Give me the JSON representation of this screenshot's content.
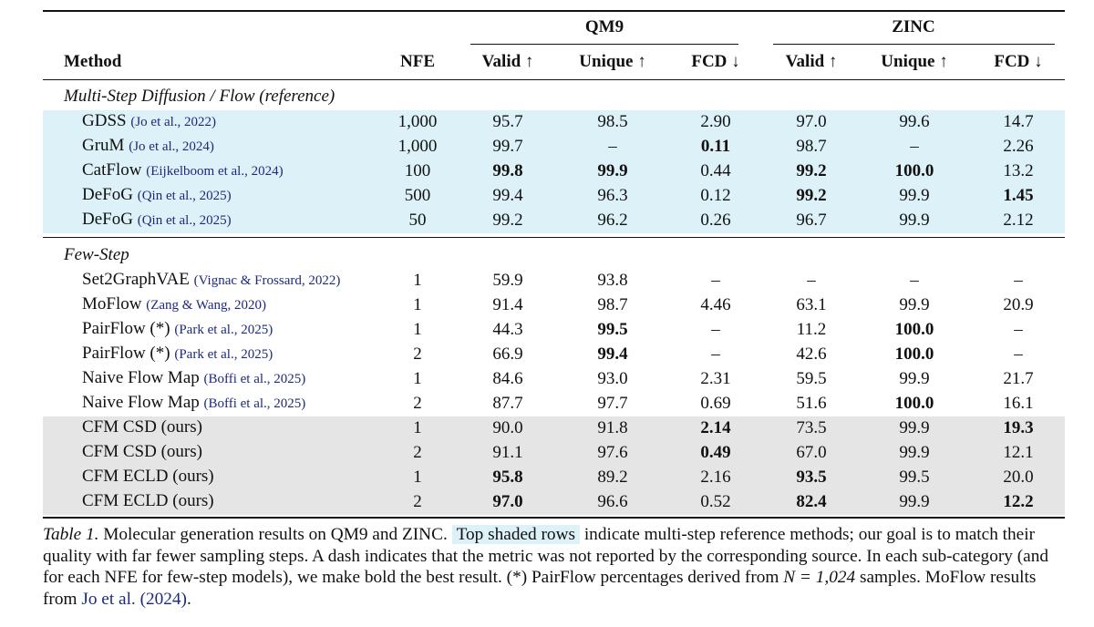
{
  "table": {
    "group_headers": [
      "QM9",
      "ZINC"
    ],
    "headers": [
      "Method",
      "NFE",
      "Valid ↑",
      "Unique ↑",
      "FCD ↓",
      "Valid ↑",
      "Unique ↑",
      "FCD ↓"
    ],
    "sections": [
      {
        "title": "Multi-Step Diffusion / Flow (reference)",
        "rows": [
          {
            "method": "GDSS",
            "cite": "(Jo et al., 2022)",
            "cells": [
              "1,000",
              "95.7",
              "98.5",
              "2.90",
              "97.0",
              "99.6",
              "14.7"
            ],
            "bold": [],
            "shade": "#ddf1f8"
          },
          {
            "method": "GruM",
            "cite": "(Jo et al., 2024)",
            "cells": [
              "1,000",
              "99.7",
              "–",
              "0.11",
              "98.7",
              "–",
              "2.26"
            ],
            "bold": [
              3
            ],
            "shade": "#ddf1f8"
          },
          {
            "method": "CatFlow",
            "cite": "(Eijkelboom et al., 2024)",
            "cells": [
              "100",
              "99.8",
              "99.9",
              "0.44",
              "99.2",
              "100.0",
              "13.2"
            ],
            "bold": [
              1,
              2,
              4,
              5
            ],
            "shade": "#ddf1f8"
          },
          {
            "method": "DeFoG",
            "cite": "(Qin et al., 2025)",
            "cells": [
              "500",
              "99.4",
              "96.3",
              "0.12",
              "99.2",
              "99.9",
              "1.45"
            ],
            "bold": [
              4,
              6
            ],
            "shade": "#ddf1f8"
          },
          {
            "method": "DeFoG",
            "cite": "(Qin et al., 2025)",
            "cells": [
              "50",
              "99.2",
              "96.2",
              "0.26",
              "96.7",
              "99.9",
              "2.12"
            ],
            "bold": [],
            "shade": "#ddf1f8"
          }
        ]
      },
      {
        "title": "Few-Step",
        "rows": [
          {
            "method": "Set2GraphVAE",
            "cite": "(Vignac & Frossard, 2022)",
            "cells": [
              "1",
              "59.9",
              "93.8",
              "–",
              "–",
              "–",
              "–"
            ],
            "bold": []
          },
          {
            "method": "MoFlow",
            "cite": "(Zang & Wang, 2020)",
            "cells": [
              "1",
              "91.4",
              "98.7",
              "4.46",
              "63.1",
              "99.9",
              "20.9"
            ],
            "bold": []
          },
          {
            "method": "PairFlow (*)",
            "cite": "(Park et al., 2025)",
            "cells": [
              "1",
              "44.3",
              "99.5",
              "–",
              "11.2",
              "100.0",
              "–"
            ],
            "bold": [
              2,
              5
            ]
          },
          {
            "method": "PairFlow (*)",
            "cite": "(Park et al., 2025)",
            "cells": [
              "2",
              "66.9",
              "99.4",
              "–",
              "42.6",
              "100.0",
              "–"
            ],
            "bold": [
              2,
              5
            ]
          },
          {
            "method": "Naive Flow Map",
            "cite": "(Boffi et al., 2025)",
            "cells": [
              "1",
              "84.6",
              "93.0",
              "2.31",
              "59.5",
              "99.9",
              "21.7"
            ],
            "bold": []
          },
          {
            "method": "Naive Flow Map",
            "cite": "(Boffi et al., 2025)",
            "cells": [
              "2",
              "87.7",
              "97.7",
              "0.69",
              "51.6",
              "100.0",
              "16.1"
            ],
            "bold": [
              5
            ]
          },
          {
            "method": "CFM CSD (ours)",
            "cells": [
              "1",
              "90.0",
              "91.8",
              "2.14",
              "73.5",
              "99.9",
              "19.3"
            ],
            "bold": [
              3,
              6
            ],
            "shade": "#e5e5e5"
          },
          {
            "method": "CFM CSD (ours)",
            "cells": [
              "2",
              "91.1",
              "97.6",
              "0.49",
              "67.0",
              "99.9",
              "12.1"
            ],
            "bold": [
              3
            ],
            "shade": "#e5e5e5"
          },
          {
            "method": "CFM ECLD (ours)",
            "cells": [
              "1",
              "95.8",
              "89.2",
              "2.16",
              "93.5",
              "99.5",
              "20.0"
            ],
            "bold": [
              1,
              4
            ],
            "shade": "#e5e5e5"
          },
          {
            "method": "CFM ECLD (ours)",
            "cells": [
              "2",
              "97.0",
              "96.6",
              "0.52",
              "82.4",
              "99.9",
              "12.2"
            ],
            "bold": [
              1,
              4,
              6
            ],
            "shade": "#e5e5e5"
          }
        ]
      }
    ]
  },
  "caption": {
    "label": "Table 1.",
    "text_1": "Molecular generation results on QM9 and ZINC.",
    "highlight": "Top shaded rows",
    "text_2": "indicate multi-step reference methods; our goal is to match their quality with far fewer sampling steps. A dash indicates that the metric was not reported by the corresponding source. In each sub-category (and for each NFE for few-step models), we make bold the best result. (*) PairFlow percentages derived from",
    "math": "N = 1,024",
    "text_3": "samples. MoFlow results from",
    "cite": "Jo et al.",
    "cite_year": "(2024)",
    "end": "."
  }
}
